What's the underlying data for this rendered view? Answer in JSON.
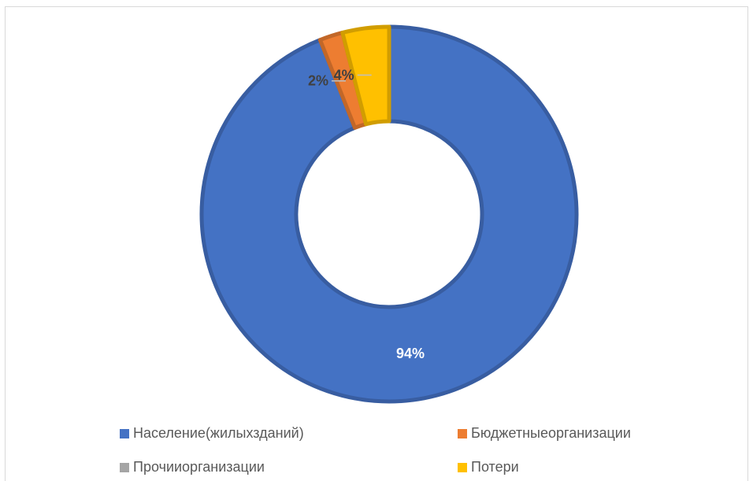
{
  "colors": {
    "naselenie": "#4472c4",
    "budget": "#ed7d31",
    "prochie": "#a5a5a5",
    "poteri": "#ffc000"
  },
  "chart_data": {
    "type": "pie",
    "donut": true,
    "title": "",
    "legend_position": "bottom",
    "categories": [
      "Население(жилыхзданий)",
      "Бюджетныеорганизации",
      "Прочииорганизации",
      "Потери"
    ],
    "values": [
      94,
      2,
      0,
      4
    ],
    "data_labels": [
      "94%",
      "2%",
      "",
      "4%"
    ],
    "colors": [
      "#4472c4",
      "#ed7d31",
      "#a5a5a5",
      "#ffc000"
    ]
  }
}
